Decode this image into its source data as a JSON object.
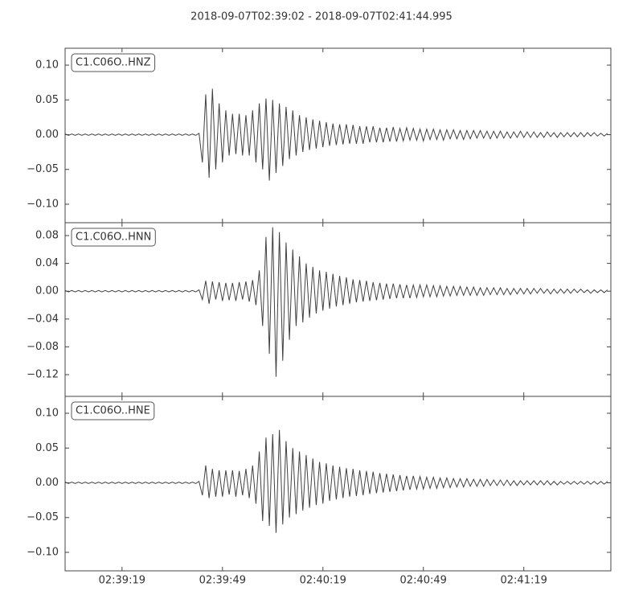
{
  "chart_data": {
    "type": "line",
    "title": "2018-09-07T02:39:02  -  2018-09-07T02:41:44.995",
    "x": [
      "02:39:02",
      "02:39:03",
      "02:39:04",
      "02:39:05",
      "02:39:06",
      "02:39:07",
      "02:39:08",
      "02:39:09",
      "02:39:10",
      "02:39:11",
      "02:39:12",
      "02:39:13",
      "02:39:14",
      "02:39:15",
      "02:39:16",
      "02:39:17",
      "02:39:18",
      "02:39:19",
      "02:39:20",
      "02:39:21",
      "02:39:22",
      "02:39:23",
      "02:39:24",
      "02:39:25",
      "02:39:26",
      "02:39:27",
      "02:39:28",
      "02:39:29",
      "02:39:30",
      "02:39:31",
      "02:39:32",
      "02:39:33",
      "02:39:34",
      "02:39:35",
      "02:39:36",
      "02:39:37",
      "02:39:38",
      "02:39:39",
      "02:39:40",
      "02:39:41",
      "02:39:42",
      "02:39:43",
      "02:39:44",
      "02:39:45",
      "02:39:46",
      "02:39:47",
      "02:39:48",
      "02:39:49",
      "02:39:50",
      "02:39:51",
      "02:39:52",
      "02:39:53",
      "02:39:54",
      "02:39:55",
      "02:39:56",
      "02:39:57",
      "02:39:58",
      "02:39:59",
      "02:40:00",
      "02:40:01",
      "02:40:02",
      "02:40:03",
      "02:40:04",
      "02:40:05",
      "02:40:06",
      "02:40:07",
      "02:40:08",
      "02:40:09",
      "02:40:10",
      "02:40:11",
      "02:40:12",
      "02:40:13",
      "02:40:14",
      "02:40:15",
      "02:40:16",
      "02:40:17",
      "02:40:18",
      "02:40:19",
      "02:40:20",
      "02:40:21",
      "02:40:22",
      "02:40:23",
      "02:40:24",
      "02:40:25",
      "02:40:26",
      "02:40:27",
      "02:40:28",
      "02:40:29",
      "02:40:30",
      "02:40:31",
      "02:40:32",
      "02:40:33",
      "02:40:34",
      "02:40:35",
      "02:40:36",
      "02:40:37",
      "02:40:38",
      "02:40:39",
      "02:40:40",
      "02:40:41",
      "02:40:42",
      "02:40:43",
      "02:40:44",
      "02:40:45",
      "02:40:46",
      "02:40:47",
      "02:40:48",
      "02:40:49",
      "02:40:50",
      "02:40:51",
      "02:40:52",
      "02:40:53",
      "02:40:54",
      "02:40:55",
      "02:40:56",
      "02:40:57",
      "02:40:58",
      "02:40:59",
      "02:41:00",
      "02:41:01",
      "02:41:02",
      "02:41:03",
      "02:41:04",
      "02:41:05",
      "02:41:06",
      "02:41:07",
      "02:41:08",
      "02:41:09",
      "02:41:10",
      "02:41:11",
      "02:41:12",
      "02:41:13",
      "02:41:14",
      "02:41:15",
      "02:41:16",
      "02:41:17",
      "02:41:18",
      "02:41:19",
      "02:41:20",
      "02:41:21",
      "02:41:22",
      "02:41:23",
      "02:41:24",
      "02:41:25",
      "02:41:26",
      "02:41:27",
      "02:41:28",
      "02:41:29",
      "02:41:30",
      "02:41:31",
      "02:41:32",
      "02:41:33",
      "02:41:34",
      "02:41:35",
      "02:41:36",
      "02:41:37",
      "02:41:38",
      "02:41:39",
      "02:41:40",
      "02:41:41",
      "02:41:42",
      "02:41:43",
      "02:41:44"
    ],
    "xlim": [
      "02:39:02",
      "02:41:44.995"
    ],
    "xticks": [
      "02:39:19",
      "02:39:49",
      "02:40:19",
      "02:40:49",
      "02:41:19"
    ],
    "series": [
      {
        "name": "C1.C06O..HNZ",
        "color": "#404040",
        "ylim": [
          -0.1266,
          0.1243
        ],
        "yticks": [
          {
            "value": 0.1,
            "label": "0.10"
          },
          {
            "value": 0.05,
            "label": "0.05"
          },
          {
            "value": 0,
            "label": "0.00"
          },
          {
            "value": -0.05,
            "label": "−0.05"
          },
          {
            "value": -0.1,
            "label": "−0.10"
          }
        ],
        "values": [
          0.001,
          -0.001,
          0.001,
          -0.001,
          0.001,
          -0.001,
          0.001,
          -0.001,
          0.001,
          -0.001,
          0.001,
          -0.001,
          0.001,
          -0.001,
          0.001,
          -0.001,
          0.001,
          -0.001,
          0.001,
          -0.001,
          0.001,
          -0.001,
          0.001,
          -0.001,
          0.001,
          -0.001,
          0.001,
          -0.001,
          0.001,
          -0.001,
          0.001,
          -0.001,
          0.001,
          -0.001,
          0.001,
          -0.001,
          0.001,
          -0.001,
          0.001,
          -0.001,
          0.002,
          -0.04,
          0.058,
          -0.062,
          0.066,
          -0.05,
          0.045,
          -0.04,
          0.035,
          -0.03,
          0.03,
          -0.028,
          0.03,
          -0.03,
          0.028,
          -0.03,
          0.035,
          -0.04,
          0.045,
          -0.05,
          0.052,
          -0.066,
          0.05,
          -0.055,
          0.045,
          -0.045,
          0.04,
          -0.035,
          0.035,
          -0.03,
          0.028,
          -0.025,
          0.025,
          -0.022,
          0.022,
          -0.02,
          0.02,
          -0.018,
          0.018,
          -0.016,
          0.016,
          -0.015,
          0.015,
          -0.014,
          0.015,
          -0.013,
          0.014,
          -0.013,
          0.012,
          -0.013,
          0.012,
          -0.011,
          0.012,
          -0.011,
          0.01,
          -0.011,
          0.01,
          -0.01,
          0.011,
          -0.01,
          0.009,
          -0.009,
          0.01,
          -0.008,
          0.009,
          -0.008,
          0.008,
          -0.009,
          0.008,
          -0.007,
          0.008,
          -0.007,
          0.007,
          -0.008,
          0.007,
          -0.006,
          0.007,
          -0.006,
          0.006,
          -0.007,
          0.006,
          -0.006,
          0.006,
          -0.005,
          0.006,
          -0.005,
          0.005,
          -0.006,
          0.005,
          -0.005,
          0.005,
          -0.005,
          0.004,
          -0.005,
          0.004,
          -0.004,
          0.005,
          -0.004,
          0.004,
          -0.004,
          0.004,
          -0.004,
          0.003,
          -0.004,
          0.004,
          -0.003,
          0.003,
          -0.004,
          0.003,
          -0.003,
          0.003,
          -0.003,
          0.003,
          -0.003,
          0.003,
          -0.003,
          0.003,
          -0.002,
          0.003,
          -0.002,
          0.002,
          -0.002,
          0.002
        ]
      },
      {
        "name": "C1.C06O..HNN",
        "color": "#404040",
        "ylim": [
          -0.1512,
          0.0985
        ],
        "yticks": [
          {
            "value": 0.08,
            "label": "0.08"
          },
          {
            "value": 0.04,
            "label": "0.04"
          },
          {
            "value": 0,
            "label": "0.00"
          },
          {
            "value": -0.04,
            "label": "−0.04"
          },
          {
            "value": -0.08,
            "label": "−0.08"
          },
          {
            "value": -0.12,
            "label": "−0.12"
          }
        ],
        "values": [
          0.001,
          -0.001,
          0.001,
          -0.001,
          0.001,
          -0.001,
          0.001,
          -0.001,
          0.001,
          -0.001,
          0.001,
          -0.001,
          0.001,
          -0.001,
          0.001,
          -0.001,
          0.001,
          -0.001,
          0.001,
          -0.001,
          0.001,
          -0.001,
          0.001,
          -0.001,
          0.001,
          -0.001,
          0.001,
          -0.001,
          0.001,
          -0.001,
          0.001,
          -0.001,
          0.001,
          -0.001,
          0.001,
          -0.001,
          0.001,
          -0.001,
          0.001,
          -0.001,
          0.002,
          -0.012,
          0.015,
          -0.018,
          0.014,
          -0.012,
          0.013,
          -0.014,
          0.012,
          -0.013,
          0.012,
          -0.014,
          0.013,
          -0.012,
          0.014,
          -0.015,
          0.016,
          -0.02,
          0.03,
          -0.05,
          0.078,
          -0.09,
          0.092,
          -0.123,
          0.085,
          -0.1,
          0.07,
          -0.07,
          0.06,
          -0.05,
          0.05,
          -0.045,
          0.04,
          -0.038,
          0.035,
          -0.032,
          0.03,
          -0.028,
          0.028,
          -0.025,
          0.025,
          -0.022,
          0.022,
          -0.02,
          0.02,
          -0.018,
          0.017,
          -0.016,
          0.016,
          -0.015,
          0.015,
          -0.014,
          0.013,
          -0.013,
          0.012,
          -0.012,
          0.011,
          -0.011,
          0.011,
          -0.01,
          0.01,
          -0.01,
          0.009,
          -0.01,
          0.009,
          -0.009,
          0.009,
          -0.008,
          0.009,
          -0.008,
          0.008,
          -0.008,
          0.008,
          -0.007,
          0.007,
          -0.007,
          0.007,
          -0.006,
          0.007,
          -0.006,
          0.006,
          -0.006,
          0.006,
          -0.006,
          0.005,
          -0.006,
          0.005,
          -0.005,
          0.005,
          -0.005,
          0.005,
          -0.005,
          0.004,
          -0.005,
          0.004,
          -0.004,
          0.004,
          -0.004,
          0.004,
          -0.004,
          0.004,
          -0.003,
          0.004,
          -0.003,
          0.003,
          -0.004,
          0.003,
          -0.003,
          0.003,
          -0.003,
          0.003,
          -0.003,
          0.003,
          -0.002,
          0.003,
          -0.002,
          0.002,
          -0.003,
          0.002,
          -0.002,
          0.002,
          -0.002,
          0.002
        ]
      },
      {
        "name": "C1.C06O..HNE",
        "color": "#404040",
        "ylim": [
          -0.1266,
          0.1243
        ],
        "yticks": [
          {
            "value": 0.1,
            "label": "0.10"
          },
          {
            "value": 0.05,
            "label": "0.05"
          },
          {
            "value": 0,
            "label": "0.00"
          },
          {
            "value": -0.05,
            "label": "−0.05"
          },
          {
            "value": -0.1,
            "label": "−0.10"
          }
        ],
        "values": [
          0.001,
          -0.001,
          0.001,
          -0.001,
          0.001,
          -0.001,
          0.001,
          -0.001,
          0.001,
          -0.001,
          0.001,
          -0.001,
          0.001,
          -0.001,
          0.001,
          -0.001,
          0.001,
          -0.001,
          0.001,
          -0.001,
          0.001,
          -0.001,
          0.001,
          -0.001,
          0.001,
          -0.001,
          0.001,
          -0.001,
          0.001,
          -0.001,
          0.001,
          -0.001,
          0.001,
          -0.001,
          0.001,
          -0.001,
          0.001,
          -0.001,
          0.001,
          -0.001,
          0.002,
          -0.018,
          0.025,
          -0.022,
          0.02,
          -0.02,
          0.018,
          -0.02,
          0.018,
          -0.017,
          0.018,
          -0.02,
          0.017,
          -0.018,
          0.02,
          -0.022,
          0.025,
          -0.03,
          0.045,
          -0.055,
          0.065,
          -0.062,
          0.07,
          -0.072,
          0.076,
          -0.06,
          0.06,
          -0.05,
          0.05,
          -0.045,
          0.045,
          -0.04,
          0.04,
          -0.036,
          0.035,
          -0.032,
          0.03,
          -0.03,
          0.028,
          -0.026,
          0.025,
          -0.024,
          0.023,
          -0.022,
          0.021,
          -0.02,
          0.02,
          -0.019,
          0.018,
          -0.018,
          0.017,
          -0.016,
          0.016,
          -0.015,
          0.014,
          -0.014,
          0.013,
          -0.013,
          0.012,
          -0.012,
          0.011,
          -0.011,
          0.01,
          -0.01,
          0.01,
          -0.009,
          0.009,
          -0.009,
          0.008,
          -0.008,
          0.008,
          -0.008,
          0.007,
          -0.007,
          0.007,
          -0.007,
          0.006,
          -0.006,
          0.006,
          -0.006,
          0.006,
          -0.005,
          0.005,
          -0.005,
          0.005,
          -0.005,
          0.005,
          -0.004,
          0.004,
          -0.004,
          0.004,
          -0.004,
          0.004,
          -0.004,
          0.003,
          -0.004,
          0.003,
          -0.003,
          0.003,
          -0.003,
          0.003,
          -0.003,
          0.003,
          -0.003,
          0.003,
          -0.003,
          0.002,
          -0.003,
          0.002,
          -0.002,
          0.002,
          -0.002,
          0.002,
          -0.002,
          0.002,
          -0.002,
          0.002,
          -0.002,
          0.002,
          -0.002,
          0.002,
          -0.002,
          0.002
        ]
      }
    ]
  }
}
